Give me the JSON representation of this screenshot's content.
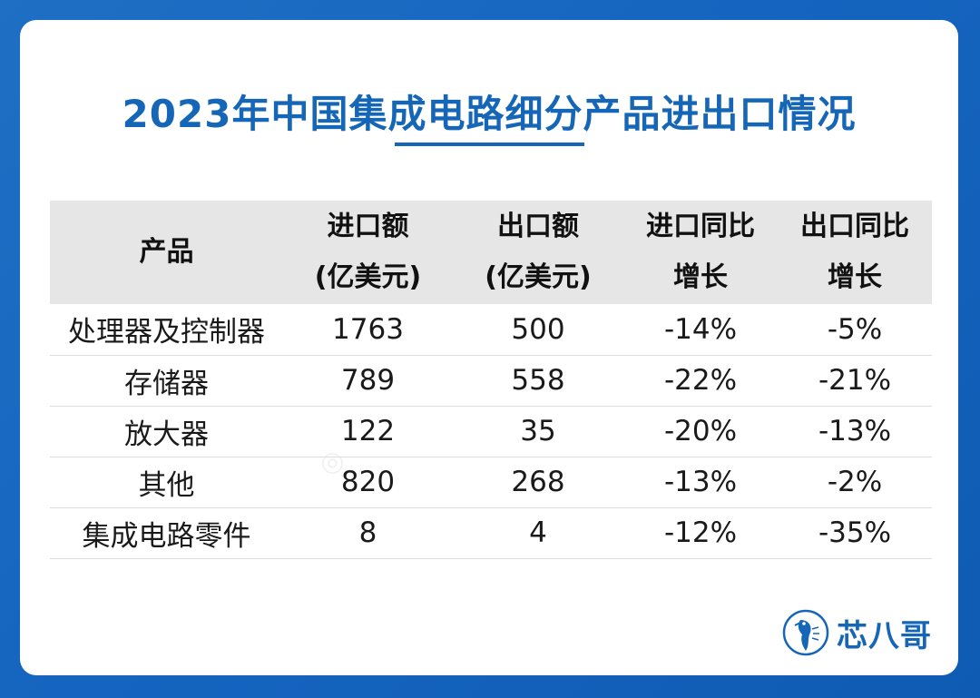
{
  "chart_data": {
    "type": "table",
    "title": "2023年中国集成电路细分产品进出口情况",
    "columns": [
      {
        "lines": [
          "产品"
        ]
      },
      {
        "lines": [
          "进口额",
          "(亿美元)"
        ]
      },
      {
        "lines": [
          "出口额",
          "(亿美元)"
        ]
      },
      {
        "lines": [
          "进口同比",
          "增长"
        ]
      },
      {
        "lines": [
          "出口同比",
          "增长"
        ]
      }
    ],
    "rows": [
      {
        "product": "处理器及控制器",
        "import": "1763",
        "export": "500",
        "import_yoy": "-14%",
        "export_yoy": "-5%"
      },
      {
        "product": "存储器",
        "import": "789",
        "export": "558",
        "import_yoy": "-22%",
        "export_yoy": "-21%"
      },
      {
        "product": "放大器",
        "import": "122",
        "export": "35",
        "import_yoy": "-20%",
        "export_yoy": "-13%"
      },
      {
        "product": "其他",
        "import": "820",
        "export": "268",
        "import_yoy": "-13%",
        "export_yoy": "-2%"
      },
      {
        "product": "集成电路零件",
        "import": "8",
        "export": "4",
        "import_yoy": "-12%",
        "export_yoy": "-35%"
      }
    ]
  },
  "logo": {
    "text": "芯八哥",
    "icon": "bird-logo-icon"
  },
  "colors": {
    "accent": "#1666b8",
    "background": "#1565c0",
    "header_fill": "#e6e6e6"
  }
}
